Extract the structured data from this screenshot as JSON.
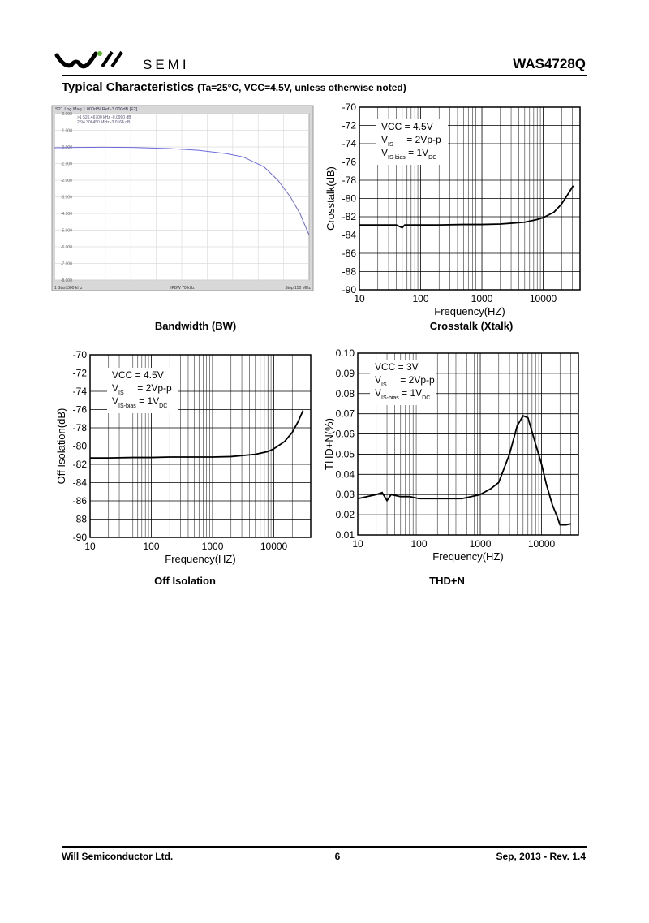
{
  "header": {
    "logo_text": "SEMI",
    "part_number": "WAS4728Q"
  },
  "section": {
    "title": "Typical Characteristics",
    "conditions": "(Ta=25°C, VCC=4.5V, unless otherwise noted)"
  },
  "chart_data": [
    {
      "type": "line",
      "style": "analyzer",
      "caption": "Bandwidth (BW)",
      "header_text": "S21 Log Mag 1.000dB/ Ref -3.000dB [F2]",
      "marker_texts": [
        ">1  526.46700 kHz  -0.0990 dB",
        " 2  94.306450 MHz  -3.0164 dB"
      ],
      "footer_texts": [
        "1  Start 300 kHz",
        "IFBW 70 kHz",
        "Stop 150 MHz"
      ],
      "xscale": "log",
      "xlim": [
        0.3,
        150
      ],
      "ylim": [
        -8,
        2
      ],
      "yticks": [
        {
          "value": 2,
          "label": "2.000"
        },
        {
          "value": 1,
          "label": "1.000"
        },
        {
          "value": 0,
          "label": "0.000"
        },
        {
          "value": -1,
          "label": "-1.000"
        },
        {
          "value": -2,
          "label": "-2.000"
        },
        {
          "value": -3,
          "label": "-3.000"
        },
        {
          "value": -4,
          "label": "-4.000"
        },
        {
          "value": -5,
          "label": "-5.000"
        },
        {
          "value": -6,
          "label": "-6.000"
        },
        {
          "value": -7,
          "label": "-7.000"
        },
        {
          "value": -8,
          "label": "-8.000"
        }
      ],
      "x": [
        0.3,
        0.5,
        1,
        2,
        5,
        10,
        20,
        30,
        50,
        70,
        95,
        120,
        150
      ],
      "values": [
        -0.05,
        -0.03,
        -0.02,
        -0.03,
        -0.1,
        -0.2,
        -0.4,
        -0.6,
        -1.2,
        -2.0,
        -3.0,
        -4.0,
        -5.3
      ],
      "color": "#6b6bdc",
      "grid": true
    },
    {
      "type": "line",
      "caption": "Crosstalk (Xtalk)",
      "xlabel": "Frequency(HZ)",
      "ylabel": "Crosstalk(dB)",
      "xscale": "log",
      "xlim": [
        10,
        40000
      ],
      "ylim": [
        -90,
        -70
      ],
      "xticks": [
        10,
        100,
        1000,
        10000
      ],
      "yticks": [
        -70,
        -72,
        -74,
        -76,
        -78,
        -80,
        -82,
        -84,
        -86,
        -88,
        -90
      ],
      "annotations": [
        {
          "text": "VCC  = 4.5V"
        },
        {
          "text": "V",
          "sub": "IS",
          "suffix": "     = 2Vp-p"
        },
        {
          "text": "V",
          "sub": "IS-bias",
          "suffix": " = 1V",
          "suffix_sub": "DC"
        }
      ],
      "x": [
        10,
        20,
        30,
        40,
        50,
        55,
        60,
        100,
        200,
        500,
        1000,
        2000,
        5000,
        8000,
        10000,
        15000,
        20000,
        25000,
        31000
      ],
      "values": [
        -82.9,
        -82.9,
        -82.9,
        -82.9,
        -83.2,
        -82.9,
        -82.9,
        -82.9,
        -82.9,
        -82.85,
        -82.85,
        -82.8,
        -82.6,
        -82.3,
        -82.1,
        -81.5,
        -80.6,
        -79.6,
        -78.6
      ],
      "color": "#000000",
      "grid": true
    },
    {
      "type": "line",
      "caption": "Off Isolation",
      "xlabel": "Frequency(HZ)",
      "ylabel": "Off Isolation(dB)",
      "xscale": "log",
      "xlim": [
        10,
        40000
      ],
      "ylim": [
        -90,
        -70
      ],
      "xticks": [
        10,
        100,
        1000,
        10000
      ],
      "yticks": [
        -70,
        -72,
        -74,
        -76,
        -78,
        -80,
        -82,
        -84,
        -86,
        -88,
        -90
      ],
      "annotations": [
        {
          "text": "VCC  = 4.5V"
        },
        {
          "text": "V",
          "sub": "IS",
          "suffix": "     = 2Vp-p"
        },
        {
          "text": "V",
          "sub": "IS-bias",
          "suffix": " = 1V",
          "suffix_sub": "DC"
        }
      ],
      "x": [
        10,
        20,
        50,
        100,
        200,
        500,
        1000,
        2000,
        5000,
        8000,
        10000,
        15000,
        20000,
        25000,
        30000
      ],
      "values": [
        -81.3,
        -81.3,
        -81.25,
        -81.25,
        -81.2,
        -81.2,
        -81.2,
        -81.15,
        -80.9,
        -80.6,
        -80.3,
        -79.5,
        -78.5,
        -77.3,
        -76.1
      ],
      "color": "#000000",
      "grid": true
    },
    {
      "type": "line",
      "caption": "THD+N",
      "xlabel": "Frequency(HZ)",
      "ylabel": "THD+N(%)",
      "xscale": "log",
      "xlim": [
        10,
        40000
      ],
      "ylim": [
        0.01,
        0.1
      ],
      "xticks": [
        10,
        100,
        1000,
        10000
      ],
      "yticks": [
        {
          "value": 0.1,
          "label": "0.10"
        },
        {
          "value": 0.09,
          "label": "0.09"
        },
        {
          "value": 0.08,
          "label": "0.08"
        },
        {
          "value": 0.07,
          "label": "0.07"
        },
        {
          "value": 0.06,
          "label": "0.06"
        },
        {
          "value": 0.05,
          "label": "0.05"
        },
        {
          "value": 0.04,
          "label": "0.04"
        },
        {
          "value": 0.03,
          "label": "0.03"
        },
        {
          "value": 0.02,
          "label": "0.02"
        },
        {
          "value": 0.01,
          "label": "0.01"
        }
      ],
      "annotations": [
        {
          "text": "VCC  = 3V"
        },
        {
          "text": "V",
          "sub": "IS",
          "suffix": "     = 2Vp-p"
        },
        {
          "text": "V",
          "sub": "IS-bias",
          "suffix": " = 1V",
          "suffix_sub": "DC"
        }
      ],
      "x": [
        10,
        20,
        25,
        30,
        35,
        50,
        70,
        100,
        200,
        500,
        1000,
        1500,
        2000,
        3000,
        4000,
        5000,
        6000,
        8000,
        10000,
        12000,
        15000,
        18000,
        20000,
        25000,
        30000
      ],
      "values": [
        0.028,
        0.03,
        0.031,
        0.027,
        0.03,
        0.029,
        0.029,
        0.028,
        0.028,
        0.028,
        0.03,
        0.033,
        0.036,
        0.05,
        0.064,
        0.069,
        0.068,
        0.055,
        0.045,
        0.035,
        0.025,
        0.019,
        0.015,
        0.015,
        0.0155
      ],
      "color": "#000000",
      "grid": true
    }
  ],
  "footer": {
    "company": "Will Semiconductor Ltd.",
    "page": "6",
    "revision": "Sep, 2013 - Rev. 1.4"
  }
}
